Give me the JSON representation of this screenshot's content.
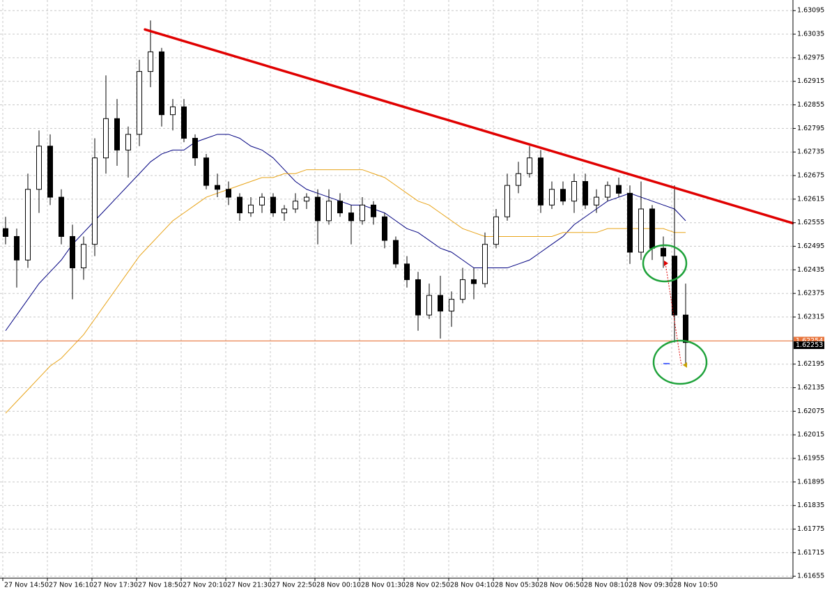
{
  "chart_data": {
    "type": "candlestick",
    "categories": [
      "27 Nov 14:50",
      null,
      null,
      null,
      "27 Nov 16:10",
      null,
      null,
      null,
      "27 Nov 17:30",
      null,
      null,
      null,
      "27 Nov 18:50",
      null,
      null,
      null,
      "27 Nov 20:10",
      null,
      null,
      null,
      "27 Nov 21:30",
      null,
      null,
      null,
      "27 Nov 22:50",
      null,
      null,
      null,
      "28 Nov 00:10",
      null,
      null,
      null,
      "28 Nov 01:30",
      null,
      null,
      null,
      "28 Nov 02:50",
      null,
      null,
      null,
      "28 Nov 04:10",
      null,
      null,
      null,
      "28 Nov 05:30",
      null,
      null,
      null,
      "28 Nov 06:50",
      null,
      null,
      null,
      "28 Nov 08:10",
      null,
      null,
      null,
      "28 Nov 09:30",
      null,
      null,
      null,
      "28 Nov 10:50",
      null
    ],
    "open": [
      1.6254,
      1.6252,
      1.6246,
      1.6264,
      1.6275,
      1.6262,
      1.6252,
      1.6244,
      1.625,
      1.6272,
      1.6282,
      1.6274,
      1.6278,
      1.6294,
      1.6299,
      1.6283,
      1.6285,
      1.6277,
      1.6272,
      1.6265,
      1.6264,
      1.6262,
      1.6258,
      1.626,
      1.6262,
      1.6258,
      1.6259,
      1.6261,
      1.6262,
      1.6256,
      1.6261,
      1.6258,
      1.6256,
      1.626,
      1.6257,
      1.6251,
      1.6245,
      1.6241,
      1.6232,
      1.6237,
      1.6233,
      1.6236,
      1.6241,
      1.624,
      1.625,
      1.6257,
      1.6265,
      1.6268,
      1.6272,
      1.626,
      1.6264,
      1.6261,
      1.6266,
      1.626,
      1.6262,
      1.6265,
      1.6263,
      1.6248,
      1.6259,
      1.6249,
      1.6247,
      1.6232
    ],
    "high": [
      1.6257,
      1.6254,
      1.6268,
      1.6279,
      1.6278,
      1.6264,
      1.6255,
      1.6252,
      1.6277,
      1.6293,
      1.6287,
      1.628,
      1.6297,
      1.6307,
      1.63,
      1.6287,
      1.6287,
      1.6278,
      1.6273,
      1.6268,
      1.6266,
      1.6263,
      1.6262,
      1.6263,
      1.6263,
      1.626,
      1.6263,
      1.6263,
      1.6264,
      1.6264,
      1.6263,
      1.626,
      1.6262,
      1.6261,
      1.6258,
      1.6252,
      1.6247,
      1.6243,
      1.624,
      1.6242,
      1.6238,
      1.6244,
      1.6244,
      1.6253,
      1.6259,
      1.6268,
      1.6271,
      1.6275,
      1.6274,
      1.6266,
      1.6266,
      1.6268,
      1.6268,
      1.6264,
      1.6266,
      1.6267,
      1.6265,
      1.6266,
      1.626,
      1.6252,
      1.6265,
      1.624
    ],
    "low": [
      1.625,
      1.6239,
      1.6244,
      1.6258,
      1.626,
      1.625,
      1.6236,
      1.6241,
      1.6247,
      1.6268,
      1.627,
      1.6267,
      1.6275,
      1.629,
      1.628,
      1.6279,
      1.6276,
      1.627,
      1.6264,
      1.6262,
      1.626,
      1.6256,
      1.6257,
      1.6258,
      1.6257,
      1.6256,
      1.6258,
      1.6259,
      1.625,
      1.6255,
      1.6257,
      1.625,
      1.6255,
      1.6255,
      1.6249,
      1.6244,
      1.6239,
      1.6228,
      1.6231,
      1.6226,
      1.6229,
      1.6235,
      1.6236,
      1.6239,
      1.6249,
      1.6256,
      1.6263,
      1.6267,
      1.6258,
      1.6259,
      1.626,
      1.6258,
      1.6259,
      1.6258,
      1.6261,
      1.6262,
      1.6245,
      1.6246,
      1.6246,
      1.6244,
      1.6225,
      1.6219
    ],
    "close": [
      1.6252,
      1.6246,
      1.6264,
      1.6275,
      1.6262,
      1.6252,
      1.6244,
      1.625,
      1.6272,
      1.6282,
      1.6274,
      1.6278,
      1.6294,
      1.6299,
      1.6283,
      1.6285,
      1.6277,
      1.6272,
      1.6265,
      1.6264,
      1.6262,
      1.6258,
      1.626,
      1.6262,
      1.6258,
      1.6259,
      1.6261,
      1.6262,
      1.6256,
      1.6261,
      1.6258,
      1.6256,
      1.626,
      1.6257,
      1.6251,
      1.6245,
      1.6241,
      1.6232,
      1.6237,
      1.6233,
      1.6236,
      1.6241,
      1.624,
      1.625,
      1.6257,
      1.6265,
      1.6268,
      1.6272,
      1.626,
      1.6264,
      1.6261,
      1.6266,
      1.626,
      1.6262,
      1.6265,
      1.6263,
      1.6248,
      1.6259,
      1.6249,
      1.6247,
      1.6232,
      1.6225
    ],
    "overlays": [
      {
        "color": "#000080",
        "values": [
          1.6228,
          1.6232,
          1.6236,
          1.624,
          1.6243,
          1.6246,
          1.625,
          1.6253,
          1.6256,
          1.6259,
          1.6262,
          1.6265,
          1.6268,
          1.6271,
          1.6273,
          1.6274,
          1.6274,
          1.6276,
          1.6277,
          1.6278,
          1.6278,
          1.6277,
          1.6275,
          1.6274,
          1.6272,
          1.6269,
          1.6266,
          1.6264,
          1.6263,
          1.6262,
          1.6261,
          1.626,
          1.626,
          1.6259,
          1.6258,
          1.6256,
          1.6254,
          1.6253,
          1.6251,
          1.6249,
          1.6248,
          1.6246,
          1.6244,
          1.6244,
          1.6244,
          1.6244,
          1.6245,
          1.6246,
          1.6248,
          1.625,
          1.6252,
          1.6255,
          1.6257,
          1.6259,
          1.6261,
          1.6262,
          1.6263,
          1.6262,
          1.6261,
          1.626,
          1.6259,
          1.6256
        ]
      },
      {
        "color": "#e8a317",
        "values": [
          1.6207,
          1.621,
          1.6213,
          1.6216,
          1.6219,
          1.6221,
          1.6224,
          1.6227,
          1.6231,
          1.6235,
          1.6239,
          1.6243,
          1.6247,
          1.625,
          1.6253,
          1.6256,
          1.6258,
          1.626,
          1.6262,
          1.6263,
          1.6264,
          1.6265,
          1.6266,
          1.6267,
          1.6267,
          1.6268,
          1.6268,
          1.6269,
          1.6269,
          1.6269,
          1.6269,
          1.6269,
          1.6269,
          1.6268,
          1.6267,
          1.6265,
          1.6263,
          1.6261,
          1.626,
          1.6258,
          1.6256,
          1.6254,
          1.6253,
          1.6252,
          1.6252,
          1.6252,
          1.6252,
          1.6252,
          1.6252,
          1.6252,
          1.6253,
          1.6253,
          1.6253,
          1.6253,
          1.6254,
          1.6254,
          1.6254,
          1.6254,
          1.6254,
          1.6254,
          1.6253,
          1.6253
        ]
      }
    ],
    "trendline": {
      "color": "#e00000",
      "from": {
        "index": 12.5,
        "price": 1.63047
      },
      "to": {
        "index": 70.6,
        "price": 1.62554
      }
    },
    "level": {
      "color": "#e8743b",
      "price": 1.62254
    },
    "bid": 1.62253,
    "ylim": [
      1.6165,
      1.63122
    ],
    "yticks": [
      1.63095,
      1.63035,
      1.62975,
      1.62915,
      1.62855,
      1.62795,
      1.62735,
      1.62675,
      1.62615,
      1.62555,
      1.62495,
      1.62435,
      1.62375,
      1.62315,
      1.62195,
      1.62135,
      1.62075,
      1.62015,
      1.61955,
      1.61895,
      1.61835,
      1.61775,
      1.61715,
      1.61655
    ],
    "grid": true,
    "bull_color": "#ffffff",
    "bear_color": "#000000"
  }
}
